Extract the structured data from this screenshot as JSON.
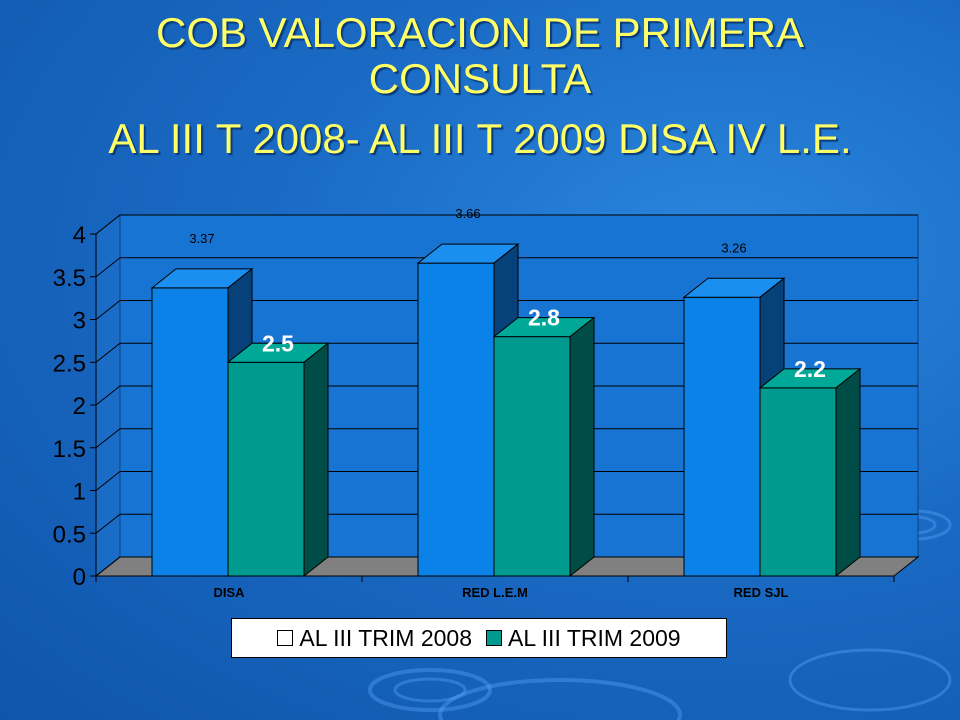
{
  "title": {
    "line1": "COB VALORACION DE PRIMERA",
    "line2": "CONSULTA",
    "line3": "AL III T 2008- AL III T 2009 DISA IV L.E."
  },
  "colors": {
    "series2008": "#0a82e8",
    "series2009": "#009a8e",
    "title": "#ffff66"
  },
  "chart_data": {
    "type": "bar",
    "categories": [
      "DISA",
      "RED L.E.M",
      "RED SJL"
    ],
    "series": [
      {
        "name": "AL III TRIM 2008",
        "values": [
          3.37,
          3.66,
          3.26
        ],
        "labels": [
          "3.37",
          "3.66",
          "3.26"
        ]
      },
      {
        "name": "AL III TRIM 2009",
        "values": [
          2.5,
          2.8,
          2.2
        ],
        "labels": [
          "2.5",
          "2.8",
          "2.2"
        ]
      }
    ],
    "yticks": [
      "0",
      "0.5",
      "1",
      "1.5",
      "2",
      "2.5",
      "3",
      "3.5",
      "4"
    ],
    "ylim": [
      0,
      4
    ],
    "grid": true,
    "legend": "bottom",
    "three_d": true
  }
}
